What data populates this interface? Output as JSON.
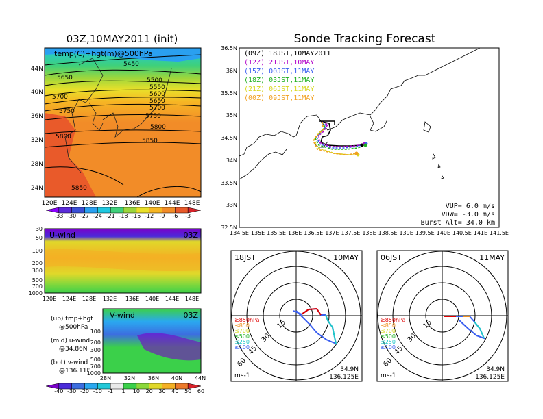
{
  "header": {
    "init_title": "03Z,10MAY2011 (init)",
    "main_title": "Sonde Tracking Forecast"
  },
  "top_map": {
    "overlay_label": "temp(C)+hgt(m)@500hPa",
    "y_ticks": [
      "44N",
      "40N",
      "36N",
      "32N",
      "28N",
      "24N"
    ],
    "x_ticks": [
      "120E",
      "124E",
      "128E",
      "132E",
      "136E",
      "140E",
      "144E",
      "148E"
    ],
    "contours": [
      "5450",
      "5500",
      "5550",
      "5600",
      "5650",
      "5700",
      "5750",
      "5800",
      "5850",
      "5650",
      "5700",
      "5750",
      "5800",
      "5850"
    ]
  },
  "temp_colorbar": {
    "labels": [
      "-33",
      "-30",
      "-27",
      "-24",
      "-21",
      "-18",
      "-15",
      "-12",
      "-9",
      "-6",
      "-3"
    ],
    "colors": [
      "#8b00ff",
      "#5a2bd9",
      "#3a4fd6",
      "#2aa0f0",
      "#1fc8e0",
      "#3fd07a",
      "#9bd63c",
      "#e9e02a",
      "#f6b624",
      "#f28c28",
      "#e95a2a",
      "#d8232a"
    ]
  },
  "u_panel": {
    "label": "U-wind",
    "time": "03Z",
    "y_ticks": [
      "30",
      "50",
      "100",
      "200",
      "300",
      "500",
      "700",
      "1000"
    ],
    "x_ticks": [
      "120E",
      "124E",
      "128E",
      "132E",
      "136E",
      "140E",
      "144E",
      "148E"
    ]
  },
  "v_panel": {
    "label": "V-wind",
    "time": "03Z",
    "y_ticks": [
      "100",
      "200",
      "300",
      "500",
      "700",
      "1000"
    ],
    "x_ticks": [
      "28N",
      "32N",
      "36N",
      "40N",
      "44N"
    ]
  },
  "wind_colorbar": {
    "labels": [
      "-40",
      "-30",
      "-20",
      "-10",
      "-1",
      "1",
      "10",
      "20",
      "30",
      "40",
      "50",
      "60"
    ],
    "colors": [
      "#7a00c9",
      "#4a2bd9",
      "#3c6ee0",
      "#2aa8f0",
      "#22c8d8",
      "#eaeaea",
      "#3bd04a",
      "#8bd83a",
      "#e0d82a",
      "#f4b024",
      "#ec7a2a",
      "#d8232a"
    ]
  },
  "legend_text": {
    "up1": "(up) tmp+hgt",
    "up2": "@500hPa",
    "mid1": "(mid) u-wind",
    "mid2": "@34.86N",
    "bot1": "(bot) v-wind",
    "bot2": "@136.11E"
  },
  "track_map": {
    "y_ticks": [
      "36.5N",
      "36N",
      "35.5N",
      "35N",
      "34.5N",
      "34N",
      "33.5N",
      "33N",
      "32.5N"
    ],
    "x_ticks": [
      "134.5E",
      "135E",
      "135.5E",
      "136E",
      "136.5E",
      "137E",
      "137.5E",
      "138E",
      "138.5E",
      "139E",
      "139.5E",
      "140E",
      "140.5E",
      "141E",
      "141.5E"
    ],
    "legend": [
      {
        "text": "(09Z)  18JST,10MAY2011",
        "color": "#000000"
      },
      {
        "text": "(12Z)  21JST,10MAY",
        "color": "#b000c8"
      },
      {
        "text": "(15Z)  00JST,11MAY",
        "color": "#3a5ff0"
      },
      {
        "text": "(18Z)  03JST,11MAY",
        "color": "#20b020"
      },
      {
        "text": "(21Z)  06JST,11MAY",
        "color": "#d8d820"
      },
      {
        "text": "(00Z)  09JST,11MAY",
        "color": "#f0a020"
      }
    ],
    "vup": "VUP=  6.0  m/s",
    "vdw": "VDW=  -3.0  m/s",
    "burst": "Burst  Alt=  34.0  km"
  },
  "hodo_left": {
    "time": "18JST",
    "date": "10MAY",
    "rings": [
      "15",
      "30",
      "45",
      "60"
    ],
    "levels": [
      {
        "text": "≥850hPa",
        "color": "#e00000"
      },
      {
        "text": "≤850",
        "color": "#f09020"
      },
      {
        "text": "≤700",
        "color": "#d8d820"
      },
      {
        "text": "≤500",
        "color": "#20b020"
      },
      {
        "text": "≤250",
        "color": "#20c8c8"
      },
      {
        "text": "≤100",
        "color": "#3a5ff0"
      }
    ],
    "unit": "ms-1",
    "lat": "34.9N",
    "lon": "136.125E"
  },
  "hodo_right": {
    "time": "06JST",
    "date": "11MAY",
    "rings": [
      "15",
      "30",
      "45",
      "60"
    ],
    "unit": "ms-1",
    "lat": "34.9N",
    "lon": "136.125E"
  }
}
